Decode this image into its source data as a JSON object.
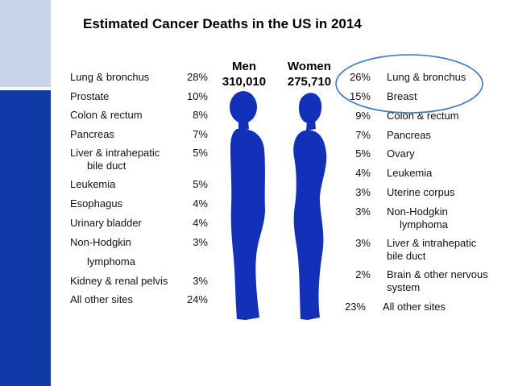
{
  "title": "Estimated Cancer Deaths in the US in 2014",
  "men": {
    "label": "Men",
    "total": "310,010",
    "rows": [
      {
        "site": "Lung & bronchus",
        "pct": "28%"
      },
      {
        "site": "Prostate",
        "pct": "10%"
      },
      {
        "site": "Colon & rectum",
        "pct": "8%"
      },
      {
        "site": "Pancreas",
        "pct": "7%"
      },
      {
        "site": "Liver & intrahepatic",
        "site2": "bile duct",
        "pct": "5%"
      },
      {
        "site": "Leukemia",
        "pct": "5%"
      },
      {
        "site": "Esophagus",
        "pct": "4%"
      },
      {
        "site": "Urinary bladder",
        "pct": "4%"
      },
      {
        "site": "Non-Hodgkin",
        "site2": "lymphoma",
        "pct": "3%"
      },
      {
        "site": "Kidney & renal pelvis",
        "pct": "3%"
      },
      {
        "site": "All other sites",
        "pct": "24%"
      }
    ]
  },
  "women": {
    "label": "Women",
    "total": "275,710",
    "rows": [
      {
        "site": "Lung & bronchus",
        "pct": "26%"
      },
      {
        "site": "Breast",
        "pct": "15%"
      },
      {
        "site": "Colon & rectum",
        "pct": "9%"
      },
      {
        "site": "Pancreas",
        "pct": "7%"
      },
      {
        "site": "Ovary",
        "pct": "5%"
      },
      {
        "site": "Leukemia",
        "pct": "4%"
      },
      {
        "site": "Uterine corpus",
        "pct": "3%"
      },
      {
        "site": "Non-Hodgkin",
        "site2": "lymphoma",
        "pct": "3%"
      },
      {
        "site": "Liver & intrahepatic",
        "site2": "bile duct",
        "pct": "3%"
      },
      {
        "site": "Brain & other nervous",
        "site2": "system",
        "pct": "2%"
      },
      {
        "site": "All other sites",
        "pct": "23%"
      }
    ]
  },
  "colors": {
    "figure": "#1330b8",
    "accent_bar": "#0f3aa8",
    "accent_bar_light": "#c8d4ea",
    "highlight_ellipse": "#3a78c8"
  },
  "icons": {
    "men": "male-silhouette-icon",
    "women": "female-silhouette-icon"
  }
}
